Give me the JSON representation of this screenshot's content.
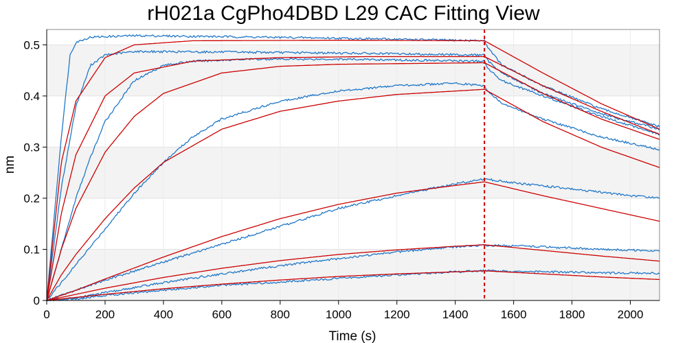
{
  "chart_data": {
    "type": "line",
    "title": "rH021a CgPho4DBD L29 CAC Fitting View",
    "xlabel": "Time (s)",
    "ylabel": "nm",
    "xlim": [
      0,
      2100
    ],
    "ylim": [
      0,
      0.53
    ],
    "x_ticks": [
      "0",
      "200",
      "400",
      "600",
      "800",
      "1000",
      "1200",
      "1400",
      "1600",
      "1800",
      "2000"
    ],
    "y_ticks": [
      "0",
      "0.1",
      "0.2",
      "0.3",
      "0.4",
      "0.5"
    ],
    "grid": true,
    "dissociation_start": 1500,
    "colors": {
      "data": "#1f77c8",
      "fit": "#cc0000",
      "marker": "#cc0000"
    },
    "series": [
      {
        "data": [
          [
            0,
            0
          ],
          [
            50,
            0.32
          ],
          [
            80,
            0.48
          ],
          [
            100,
            0.505
          ],
          [
            150,
            0.515
          ],
          [
            300,
            0.518
          ],
          [
            600,
            0.516
          ],
          [
            1000,
            0.513
          ],
          [
            1500,
            0.508
          ],
          [
            1510,
            0.497
          ],
          [
            1560,
            0.46
          ],
          [
            1700,
            0.42
          ],
          [
            1900,
            0.375
          ],
          [
            2100,
            0.34
          ]
        ],
        "fit": [
          [
            0,
            0
          ],
          [
            50,
            0.27
          ],
          [
            100,
            0.39
          ],
          [
            200,
            0.475
          ],
          [
            300,
            0.5
          ],
          [
            500,
            0.508
          ],
          [
            1000,
            0.509
          ],
          [
            1500,
            0.508
          ],
          [
            1700,
            0.445
          ],
          [
            1900,
            0.385
          ],
          [
            2100,
            0.335
          ]
        ]
      },
      {
        "data": [
          [
            0,
            0
          ],
          [
            50,
            0.22
          ],
          [
            100,
            0.38
          ],
          [
            150,
            0.46
          ],
          [
            200,
            0.48
          ],
          [
            300,
            0.487
          ],
          [
            600,
            0.486
          ],
          [
            1000,
            0.484
          ],
          [
            1500,
            0.48
          ],
          [
            1510,
            0.47
          ],
          [
            1560,
            0.445
          ],
          [
            1700,
            0.405
          ],
          [
            1900,
            0.365
          ],
          [
            2100,
            0.335
          ]
        ],
        "fit": [
          [
            0,
            0
          ],
          [
            50,
            0.17
          ],
          [
            100,
            0.285
          ],
          [
            200,
            0.4
          ],
          [
            300,
            0.445
          ],
          [
            500,
            0.468
          ],
          [
            800,
            0.475
          ],
          [
            1100,
            0.477
          ],
          [
            1500,
            0.477
          ],
          [
            1700,
            0.42
          ],
          [
            1900,
            0.37
          ],
          [
            2100,
            0.325
          ]
        ]
      },
      {
        "data": [
          [
            0,
            0
          ],
          [
            50,
            0.1
          ],
          [
            100,
            0.2
          ],
          [
            150,
            0.28
          ],
          [
            200,
            0.35
          ],
          [
            300,
            0.43
          ],
          [
            400,
            0.46
          ],
          [
            500,
            0.468
          ],
          [
            700,
            0.472
          ],
          [
            1000,
            0.472
          ],
          [
            1500,
            0.468
          ],
          [
            1510,
            0.455
          ],
          [
            1560,
            0.43
          ],
          [
            1700,
            0.4
          ],
          [
            1900,
            0.36
          ],
          [
            2100,
            0.325
          ]
        ],
        "fit": [
          [
            0,
            0
          ],
          [
            50,
            0.1
          ],
          [
            100,
            0.18
          ],
          [
            200,
            0.29
          ],
          [
            300,
            0.36
          ],
          [
            400,
            0.405
          ],
          [
            600,
            0.445
          ],
          [
            800,
            0.458
          ],
          [
            1000,
            0.462
          ],
          [
            1500,
            0.465
          ],
          [
            1700,
            0.405
          ],
          [
            1900,
            0.355
          ],
          [
            2100,
            0.315
          ]
        ]
      },
      {
        "data": [
          [
            0,
            0
          ],
          [
            50,
            0.035
          ],
          [
            100,
            0.07
          ],
          [
            200,
            0.14
          ],
          [
            300,
            0.21
          ],
          [
            400,
            0.27
          ],
          [
            500,
            0.32
          ],
          [
            600,
            0.355
          ],
          [
            800,
            0.39
          ],
          [
            1000,
            0.41
          ],
          [
            1200,
            0.42
          ],
          [
            1400,
            0.425
          ],
          [
            1500,
            0.42
          ],
          [
            1510,
            0.41
          ],
          [
            1560,
            0.385
          ],
          [
            1700,
            0.355
          ],
          [
            1900,
            0.32
          ],
          [
            2100,
            0.295
          ]
        ],
        "fit": [
          [
            0,
            0
          ],
          [
            50,
            0.05
          ],
          [
            100,
            0.09
          ],
          [
            200,
            0.16
          ],
          [
            300,
            0.22
          ],
          [
            400,
            0.27
          ],
          [
            600,
            0.335
          ],
          [
            800,
            0.37
          ],
          [
            1000,
            0.39
          ],
          [
            1200,
            0.403
          ],
          [
            1500,
            0.413
          ],
          [
            1700,
            0.35
          ],
          [
            1900,
            0.3
          ],
          [
            2100,
            0.26
          ]
        ]
      },
      {
        "data": [
          [
            0,
            0
          ],
          [
            100,
            0.02
          ],
          [
            200,
            0.04
          ],
          [
            400,
            0.075
          ],
          [
            600,
            0.11
          ],
          [
            800,
            0.145
          ],
          [
            1000,
            0.18
          ],
          [
            1200,
            0.205
          ],
          [
            1400,
            0.228
          ],
          [
            1500,
            0.238
          ],
          [
            1600,
            0.23
          ],
          [
            1800,
            0.218
          ],
          [
            2000,
            0.205
          ],
          [
            2100,
            0.2
          ]
        ],
        "fit": [
          [
            0,
            0
          ],
          [
            100,
            0.02
          ],
          [
            200,
            0.042
          ],
          [
            400,
            0.085
          ],
          [
            600,
            0.125
          ],
          [
            800,
            0.16
          ],
          [
            1000,
            0.188
          ],
          [
            1200,
            0.21
          ],
          [
            1400,
            0.225
          ],
          [
            1500,
            0.232
          ],
          [
            1700,
            0.205
          ],
          [
            1900,
            0.18
          ],
          [
            2100,
            0.155
          ]
        ]
      },
      {
        "data": [
          [
            0,
            0
          ],
          [
            100,
            0.005
          ],
          [
            200,
            0.015
          ],
          [
            400,
            0.035
          ],
          [
            600,
            0.052
          ],
          [
            800,
            0.068
          ],
          [
            1000,
            0.082
          ],
          [
            1200,
            0.095
          ],
          [
            1400,
            0.105
          ],
          [
            1500,
            0.108
          ],
          [
            1700,
            0.105
          ],
          [
            1900,
            0.1
          ],
          [
            2100,
            0.097
          ]
        ],
        "fit": [
          [
            0,
            0
          ],
          [
            100,
            0.012
          ],
          [
            200,
            0.024
          ],
          [
            400,
            0.045
          ],
          [
            600,
            0.063
          ],
          [
            800,
            0.078
          ],
          [
            1000,
            0.09
          ],
          [
            1200,
            0.099
          ],
          [
            1400,
            0.106
          ],
          [
            1500,
            0.109
          ],
          [
            1700,
            0.098
          ],
          [
            1900,
            0.087
          ],
          [
            2100,
            0.077
          ]
        ]
      },
      {
        "data": [
          [
            0,
            0
          ],
          [
            100,
            0.003
          ],
          [
            200,
            0.01
          ],
          [
            400,
            0.02
          ],
          [
            600,
            0.03
          ],
          [
            800,
            0.036
          ],
          [
            1000,
            0.043
          ],
          [
            1200,
            0.05
          ],
          [
            1400,
            0.056
          ],
          [
            1500,
            0.058
          ],
          [
            1700,
            0.056
          ],
          [
            1900,
            0.054
          ],
          [
            2100,
            0.053
          ]
        ],
        "fit": [
          [
            0,
            0
          ],
          [
            100,
            0.006
          ],
          [
            200,
            0.012
          ],
          [
            400,
            0.023
          ],
          [
            600,
            0.032
          ],
          [
            800,
            0.04
          ],
          [
            1000,
            0.047
          ],
          [
            1200,
            0.052
          ],
          [
            1400,
            0.056
          ],
          [
            1500,
            0.058
          ],
          [
            1700,
            0.052
          ],
          [
            1900,
            0.046
          ],
          [
            2100,
            0.041
          ]
        ]
      }
    ]
  }
}
